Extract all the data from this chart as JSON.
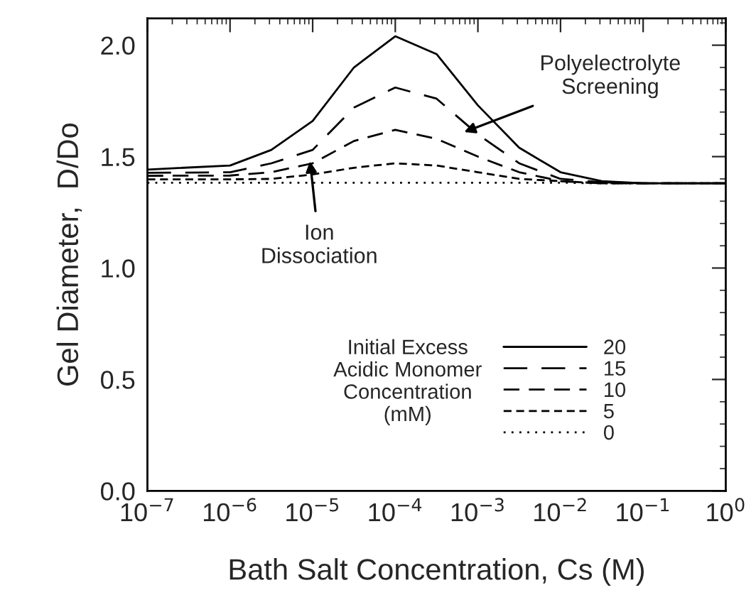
{
  "chart_data": {
    "type": "line",
    "xlabel": "Bath Salt Concentration, Cs (M)",
    "ylabel": "Gel Diameter,  D/Do",
    "legend_title": "Initial Excess\nAcidic Monomer\nConcentration\n(mM)",
    "log": "x",
    "x": [
      1e-07,
      1e-06,
      3.16e-06,
      1e-05,
      3.16e-05,
      0.0001,
      0.000316,
      0.001,
      0.00316,
      0.01,
      0.0316,
      0.1,
      1
    ],
    "series": [
      {
        "name": "20",
        "color": "#000000",
        "line_style": "solid",
        "values": [
          1.442,
          1.46,
          1.53,
          1.66,
          1.9,
          2.04,
          1.96,
          1.73,
          1.54,
          1.43,
          1.39,
          1.38,
          1.38
        ]
      },
      {
        "name": "15",
        "color": "#000000",
        "line_style": "dashed",
        "values": [
          1.427,
          1.43,
          1.47,
          1.53,
          1.72,
          1.81,
          1.76,
          1.6,
          1.47,
          1.4,
          1.385,
          1.38,
          1.38
        ]
      },
      {
        "name": "10",
        "color": "#000000",
        "line_style": "dashed",
        "values": [
          1.414,
          1.415,
          1.43,
          1.47,
          1.57,
          1.62,
          1.58,
          1.5,
          1.43,
          1.39,
          1.38,
          1.38,
          1.38
        ]
      },
      {
        "name": "5",
        "color": "#000000",
        "line_style": "dashed",
        "values": [
          1.398,
          1.398,
          1.4,
          1.42,
          1.45,
          1.47,
          1.46,
          1.43,
          1.4,
          1.39,
          1.38,
          1.38,
          1.38
        ]
      },
      {
        "name": "0",
        "color": "#000000",
        "line_style": "dotted",
        "values": [
          1.383,
          1.383,
          1.383,
          1.383,
          1.383,
          1.383,
          1.383,
          1.383,
          1.383,
          1.383,
          1.38,
          1.38,
          1.38
        ]
      }
    ],
    "annotations": [
      {
        "text": "Polyelectrolyte\nScreening",
        "x": 0.00068,
        "y": 1.61
      },
      {
        "text": "Ion\nDissociation",
        "x": 9.3e-06,
        "y": 1.48
      }
    ],
    "xlim": [
      1e-07,
      1
    ],
    "ylim": [
      0,
      2.12
    ],
    "xticks": [
      {
        "value": 1e-07,
        "label": "10$^{−7}$"
      },
      {
        "value": 1e-06,
        "label": "10$^{−6}$"
      },
      {
        "value": 1e-05,
        "label": "10$^{−5}$"
      },
      {
        "value": 0.0001,
        "label": "10$^{−4}$"
      },
      {
        "value": 0.001,
        "label": "10$^{−3}$"
      },
      {
        "value": 0.01,
        "label": "10$^{−2}$"
      },
      {
        "value": 0.1,
        "label": "10$^{−1}$"
      },
      {
        "value": 1,
        "label": "10$^{0}$"
      }
    ],
    "yticks": [
      {
        "value": 0,
        "label": "0.0"
      },
      {
        "value": 0.5,
        "label": "0.5"
      },
      {
        "value": 1,
        "label": "1.0"
      },
      {
        "value": 1.5,
        "label": "1.5"
      },
      {
        "value": 2,
        "label": "2.0"
      }
    ],
    "grid": false,
    "legend": "bottom right",
    "marker": "none"
  }
}
